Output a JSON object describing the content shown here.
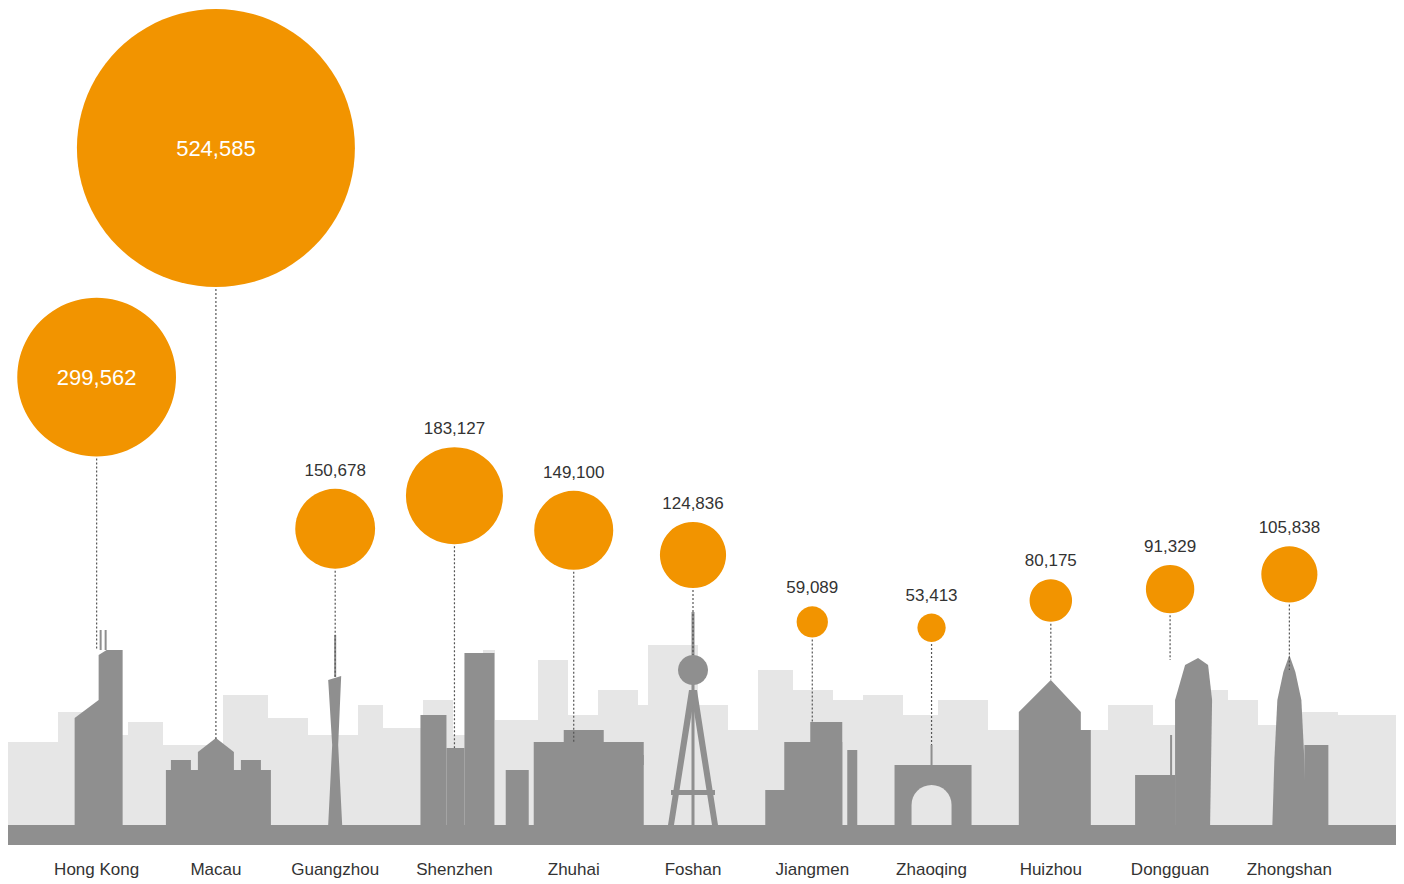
{
  "chart_data": {
    "type": "bubble",
    "categories": [
      "Hong Kong",
      "Macau",
      "Guangzhou",
      "Shenzhen",
      "Zhuhai",
      "Foshan",
      "Jiangmen",
      "Zhaoqing",
      "Huizhou",
      "Dongguan",
      "Zhongshan"
    ],
    "values": [
      299562,
      524585,
      150678,
      183127,
      149100,
      124836,
      59089,
      53413,
      80175,
      91329,
      105838
    ],
    "value_labels": [
      "299,562",
      "524,585",
      "150,678",
      "183,127",
      "149,100",
      "124,836",
      "59,089",
      "53,413",
      "80,175",
      "91,329",
      "105,838"
    ],
    "color": "#f29400",
    "ylim": [
      -160000,
      670000
    ],
    "data_labels": true,
    "tick_labels": "x",
    "grid": false
  }
}
